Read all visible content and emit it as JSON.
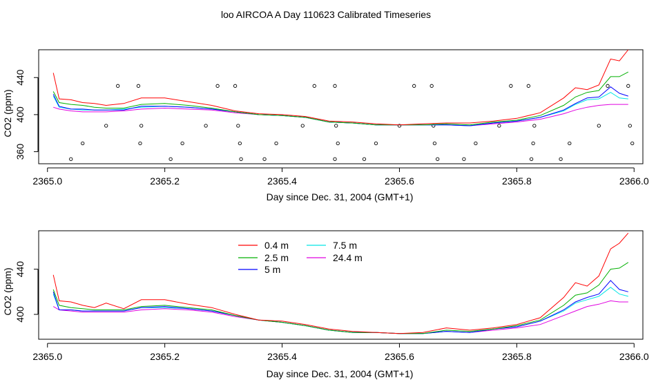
{
  "title": "loo AIRCOA A  Day 110623  Calibrated Timeseries",
  "colors": {
    "0.4 m": "#ff0000",
    "2.5 m": "#00b000",
    "5 m": "#0000ff",
    "7.5 m": "#00e5e5",
    "24.4 m": "#e000e0"
  },
  "chart_data": [
    {
      "type": "line",
      "title": "loo AIRCOA A  Day 110623  Calibrated Timeseries",
      "xlabel": "Day since Dec. 31, 2004 (GMT+1)",
      "ylabel": "CO2 (ppm)",
      "xlim": [
        2364.985,
        2366.015
      ],
      "ylim": [
        347,
        470
      ],
      "x_ticks": [
        "2365.0",
        "2365.2",
        "2365.4",
        "2365.6",
        "2365.8",
        "2366.0"
      ],
      "y_ticks": [
        "360",
        "400",
        "440"
      ],
      "x_tick_values": [
        2365.0,
        2365.2,
        2365.4,
        2365.6,
        2365.8,
        2366.0
      ],
      "y_tick_values": [
        360,
        400,
        440
      ],
      "lines_hint": "series lines with open-circle scatter overlay",
      "points": {
        "x": [
          2365.04,
          2365.06,
          2365.1,
          2365.12,
          2365.155,
          2365.16,
          2365.158,
          2365.21,
          2365.23,
          2365.27,
          2365.29,
          2365.32,
          2365.325,
          2365.328,
          2365.33,
          2365.37,
          2365.39,
          2365.435,
          2365.455,
          2365.49,
          2365.492,
          2365.495,
          2365.49,
          2365.54,
          2365.56,
          2365.6,
          2365.625,
          2365.655,
          2365.658,
          2365.66,
          2365.665,
          2365.71,
          2365.73,
          2365.77,
          2365.79,
          2365.82,
          2365.83,
          2365.828,
          2365.825,
          2365.875,
          2365.89,
          2365.94,
          2365.955,
          2365.99,
          2365.993,
          2365.997
        ],
        "y": [
          352,
          369,
          388,
          431,
          431,
          388,
          369,
          352,
          369,
          388,
          431,
          431,
          388,
          369,
          352,
          352,
          369,
          388,
          431,
          431,
          388,
          369,
          352,
          352,
          369,
          388,
          431,
          431,
          388,
          369,
          352,
          352,
          369,
          388,
          431,
          431,
          388,
          369,
          352,
          352,
          369,
          388,
          431,
          431,
          388,
          369
        ]
      },
      "series": [
        {
          "name": "0.4 m",
          "x": [
            2365.01,
            2365.02,
            2365.04,
            2365.06,
            2365.08,
            2365.1,
            2365.13,
            2365.16,
            2365.2,
            2365.24,
            2365.28,
            2365.32,
            2365.36,
            2365.4,
            2365.44,
            2365.48,
            2365.52,
            2365.56,
            2365.6,
            2365.64,
            2365.68,
            2365.72,
            2365.76,
            2365.8,
            2365.84,
            2365.88,
            2365.9,
            2365.92,
            2365.94,
            2365.96,
            2365.975,
            2365.99
          ],
          "y": [
            445,
            417,
            416,
            413,
            412,
            410,
            412,
            418,
            418,
            414,
            410,
            404,
            401,
            400,
            398,
            393,
            392,
            390,
            389,
            390,
            391,
            391,
            393,
            396,
            402,
            418,
            429,
            427,
            432,
            460,
            458,
            470
          ]
        },
        {
          "name": "2.5 m",
          "x": [
            2365.01,
            2365.02,
            2365.04,
            2365.06,
            2365.08,
            2365.1,
            2365.13,
            2365.16,
            2365.2,
            2365.24,
            2365.28,
            2365.32,
            2365.36,
            2365.4,
            2365.44,
            2365.48,
            2365.52,
            2365.56,
            2365.6,
            2365.64,
            2365.68,
            2365.72,
            2365.76,
            2365.8,
            2365.84,
            2365.88,
            2365.9,
            2365.92,
            2365.94,
            2365.96,
            2365.975,
            2365.99
          ],
          "y": [
            425,
            413,
            411,
            410,
            408,
            407,
            407,
            411,
            412,
            410,
            407,
            403,
            400,
            399,
            397,
            392,
            391,
            389,
            389,
            389,
            390,
            389,
            392,
            394,
            399,
            410,
            419,
            424,
            426,
            441,
            441,
            446
          ]
        },
        {
          "name": "5 m",
          "x": [
            2365.01,
            2365.02,
            2365.04,
            2365.06,
            2365.08,
            2365.1,
            2365.13,
            2365.16,
            2365.2,
            2365.24,
            2365.28,
            2365.32,
            2365.36,
            2365.4,
            2365.44,
            2365.48,
            2365.52,
            2365.56,
            2365.6,
            2365.64,
            2365.68,
            2365.72,
            2365.76,
            2365.8,
            2365.84,
            2365.88,
            2365.9,
            2365.92,
            2365.94,
            2365.96,
            2365.975,
            2365.99
          ],
          "y": [
            422,
            409,
            406,
            406,
            405,
            405,
            405,
            409,
            409,
            408,
            406,
            403,
            400,
            399,
            397,
            392,
            391,
            389,
            389,
            389,
            389,
            388,
            391,
            393,
            397,
            405,
            412,
            418,
            419,
            430,
            423,
            420
          ]
        },
        {
          "name": "7.5 m",
          "x": [
            2365.01,
            2365.02,
            2365.04,
            2365.06,
            2365.08,
            2365.1,
            2365.13,
            2365.16,
            2365.2,
            2365.24,
            2365.28,
            2365.32,
            2365.36,
            2365.4,
            2365.44,
            2365.48,
            2365.52,
            2365.56,
            2365.6,
            2365.64,
            2365.68,
            2365.72,
            2365.76,
            2365.8,
            2365.84,
            2365.88,
            2365.9,
            2365.92,
            2365.94,
            2365.96,
            2365.975,
            2365.99
          ],
          "y": [
            420,
            408,
            406,
            405,
            405,
            405,
            406,
            408,
            409,
            408,
            406,
            403,
            400,
            399,
            397,
            392,
            391,
            389,
            389,
            389,
            389,
            388,
            391,
            393,
            397,
            404,
            411,
            416,
            417,
            424,
            418,
            417
          ]
        },
        {
          "name": "24.4 m",
          "x": [
            2365.01,
            2365.02,
            2365.04,
            2365.06,
            2365.08,
            2365.1,
            2365.13,
            2365.16,
            2365.2,
            2365.24,
            2365.28,
            2365.32,
            2365.36,
            2365.4,
            2365.44,
            2365.48,
            2365.52,
            2365.56,
            2365.6,
            2365.64,
            2365.68,
            2365.72,
            2365.76,
            2365.8,
            2365.84,
            2365.88,
            2365.9,
            2365.92,
            2365.94,
            2365.96,
            2365.975,
            2365.99
          ],
          "y": [
            408,
            406,
            404,
            403,
            403,
            403,
            404,
            406,
            407,
            406,
            405,
            402,
            400,
            399,
            397,
            392,
            391,
            389,
            389,
            389,
            389,
            388,
            390,
            392,
            395,
            401,
            405,
            408,
            410,
            411,
            411,
            411
          ]
        }
      ]
    },
    {
      "type": "line",
      "title": "",
      "xlabel": "Day since Dec. 31, 2004 (GMT+1)",
      "ylabel": "CO2 (ppm)",
      "xlim": [
        2364.985,
        2366.015
      ],
      "ylim": [
        378,
        474
      ],
      "x_ticks": [
        "2365.0",
        "2365.2",
        "2365.4",
        "2365.6",
        "2365.8",
        "2366.0"
      ],
      "y_ticks": [
        "400",
        "440"
      ],
      "x_tick_values": [
        2365.0,
        2365.2,
        2365.4,
        2365.6,
        2365.8,
        2366.0
      ],
      "y_tick_values": [
        400,
        440
      ],
      "legend": {
        "placement": "top-left",
        "entries": [
          "0.4 m",
          "2.5 m",
          "5 m",
          "7.5 m",
          "24.4 m"
        ]
      },
      "series": [
        {
          "name": "0.4 m",
          "x": [
            2365.01,
            2365.02,
            2365.04,
            2365.06,
            2365.08,
            2365.1,
            2365.13,
            2365.16,
            2365.2,
            2365.24,
            2365.28,
            2365.32,
            2365.36,
            2365.4,
            2365.44,
            2365.48,
            2365.52,
            2365.56,
            2365.6,
            2365.64,
            2365.68,
            2365.72,
            2365.76,
            2365.8,
            2365.84,
            2365.88,
            2365.9,
            2365.92,
            2365.94,
            2365.96,
            2365.975,
            2365.99
          ],
          "y": [
            435,
            412,
            411,
            408,
            406,
            410,
            405,
            413,
            413,
            409,
            406,
            400,
            395,
            394,
            391,
            387,
            385,
            384,
            383,
            384,
            388,
            386,
            388,
            391,
            397,
            415,
            428,
            425,
            434,
            458,
            463,
            472
          ]
        },
        {
          "name": "2.5 m",
          "x": [
            2365.01,
            2365.02,
            2365.04,
            2365.06,
            2365.08,
            2365.1,
            2365.13,
            2365.16,
            2365.2,
            2365.24,
            2365.28,
            2365.32,
            2365.36,
            2365.4,
            2365.44,
            2365.48,
            2365.52,
            2365.56,
            2365.6,
            2365.64,
            2365.68,
            2365.72,
            2365.76,
            2365.8,
            2365.84,
            2365.88,
            2365.9,
            2365.92,
            2365.94,
            2365.96,
            2365.975,
            2365.99
          ],
          "y": [
            422,
            408,
            406,
            405,
            404,
            404,
            404,
            407,
            408,
            406,
            404,
            399,
            395,
            393,
            390,
            386,
            384,
            384,
            383,
            383,
            386,
            385,
            387,
            390,
            395,
            408,
            417,
            419,
            426,
            440,
            441,
            446
          ]
        },
        {
          "name": "5 m",
          "x": [
            2365.01,
            2365.02,
            2365.04,
            2365.06,
            2365.08,
            2365.1,
            2365.13,
            2365.16,
            2365.2,
            2365.24,
            2365.28,
            2365.32,
            2365.36,
            2365.4,
            2365.44,
            2365.48,
            2365.52,
            2365.56,
            2365.6,
            2365.64,
            2365.68,
            2365.72,
            2365.76,
            2365.8,
            2365.84,
            2365.88,
            2365.9,
            2365.92,
            2365.94,
            2365.96,
            2365.975,
            2365.99
          ],
          "y": [
            420,
            404,
            404,
            403,
            403,
            403,
            403,
            406,
            407,
            405,
            403,
            399,
            395,
            393,
            390,
            386,
            384,
            384,
            383,
            383,
            385,
            384,
            387,
            389,
            394,
            404,
            411,
            415,
            418,
            430,
            422,
            420
          ]
        },
        {
          "name": "7.5 m",
          "x": [
            2365.01,
            2365.02,
            2365.04,
            2365.06,
            2365.08,
            2365.1,
            2365.13,
            2365.16,
            2365.2,
            2365.24,
            2365.28,
            2365.32,
            2365.36,
            2365.4,
            2365.44,
            2365.48,
            2365.52,
            2365.56,
            2365.6,
            2365.64,
            2365.68,
            2365.72,
            2365.76,
            2365.8,
            2365.84,
            2365.88,
            2365.9,
            2365.92,
            2365.94,
            2365.96,
            2365.975,
            2365.99
          ],
          "y": [
            418,
            404,
            404,
            403,
            403,
            403,
            403,
            406,
            406,
            405,
            403,
            399,
            395,
            393,
            390,
            386,
            384,
            384,
            383,
            383,
            385,
            384,
            387,
            389,
            394,
            403,
            410,
            413,
            416,
            424,
            418,
            416
          ]
        },
        {
          "name": "24.4 m",
          "x": [
            2365.01,
            2365.02,
            2365.04,
            2365.06,
            2365.08,
            2365.1,
            2365.13,
            2365.16,
            2365.2,
            2365.24,
            2365.28,
            2365.32,
            2365.36,
            2365.4,
            2365.44,
            2365.48,
            2365.52,
            2365.56,
            2365.6,
            2365.64,
            2365.68,
            2365.72,
            2365.76,
            2365.8,
            2365.84,
            2365.88,
            2365.9,
            2365.92,
            2365.94,
            2365.96,
            2365.975,
            2365.99
          ],
          "y": [
            407,
            404,
            403,
            402,
            402,
            402,
            402,
            404,
            405,
            404,
            402,
            398,
            395,
            393,
            390,
            386,
            384,
            384,
            383,
            383,
            385,
            384,
            386,
            388,
            391,
            399,
            403,
            407,
            409,
            412,
            411,
            411
          ]
        }
      ]
    }
  ]
}
